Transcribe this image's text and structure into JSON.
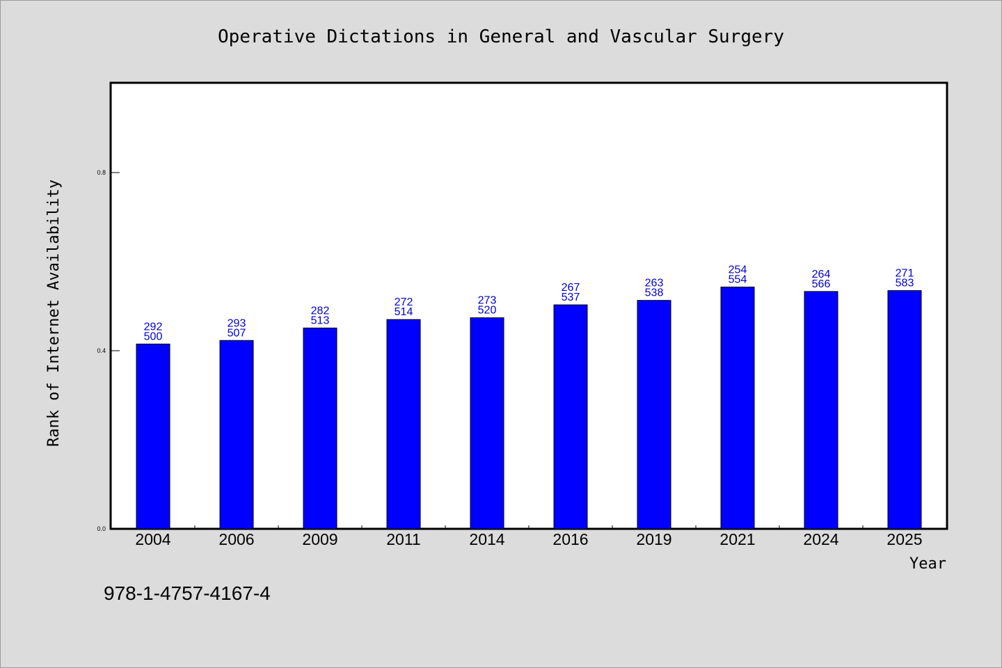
{
  "chart_data": {
    "type": "bar",
    "title": "Operative Dictations in General and Vascular Surgery",
    "xlabel": "Year",
    "ylabel": "Rank of Internet Availability",
    "categories": [
      "2004",
      "2006",
      "2009",
      "2011",
      "2014",
      "2016",
      "2019",
      "2021",
      "2024",
      "2025"
    ],
    "values": [
      0.415,
      0.423,
      0.451,
      0.47,
      0.474,
      0.503,
      0.513,
      0.543,
      0.533,
      0.535
    ],
    "label_top": [
      "292",
      "293",
      "282",
      "272",
      "273",
      "267",
      "263",
      "254",
      "264",
      "271"
    ],
    "label_bottom": [
      "500",
      "507",
      "513",
      "514",
      "520",
      "537",
      "538",
      "554",
      "566",
      "583"
    ],
    "ylim": [
      0.0,
      1.0
    ],
    "yticks": [
      "0.0",
      "0.4",
      "0.8"
    ],
    "bar_color": "#0000ff",
    "label_color": "#0000cc",
    "grid": false
  },
  "footer": {
    "code": "978-1-4757-4167-4"
  }
}
